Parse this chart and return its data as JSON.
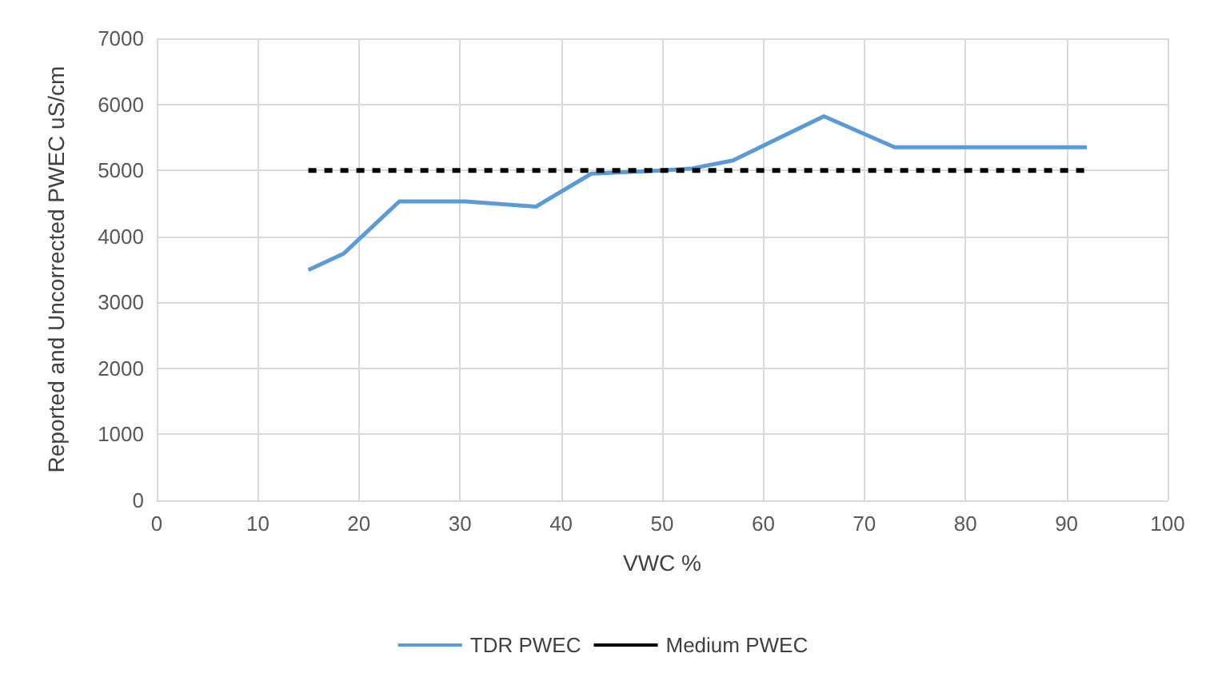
{
  "chart_data": {
    "type": "line",
    "xlabel": "VWC %",
    "ylabel": "Reported and Uncorrected PWEC uS/cm",
    "xlim": [
      0,
      100
    ],
    "xticks": [
      0,
      10,
      20,
      30,
      40,
      50,
      60,
      70,
      80,
      90,
      100
    ],
    "ylim": [
      0,
      7000
    ],
    "yticks": [
      0,
      1000,
      2000,
      3000,
      4000,
      5000,
      6000,
      7000
    ],
    "grid": true,
    "legend": "bottom",
    "marker": "none",
    "series": [
      {
        "name": "TDR PWEC",
        "color": "#5b9bd5",
        "line_style": "solid",
        "x": [
          15,
          18.5,
          24,
          30.5,
          37.5,
          43,
          50,
          53,
          57,
          66,
          73,
          92
        ],
        "values": [
          3490,
          3740,
          4530,
          4530,
          4450,
          4950,
          5000,
          5030,
          5150,
          5820,
          5350,
          5350
        ]
      },
      {
        "name": "Medium PWEC",
        "color": "#000000",
        "line_style": "dashed",
        "x": [
          15,
          92
        ],
        "values": [
          5000,
          5000
        ]
      }
    ]
  }
}
